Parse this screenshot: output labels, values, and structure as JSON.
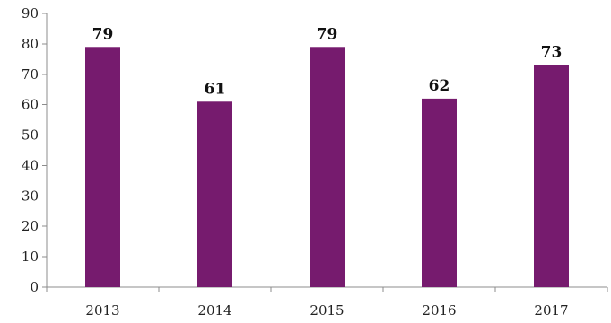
{
  "chart_data": {
    "type": "bar",
    "categories": [
      "2013",
      "2014",
      "2015",
      "2016",
      "2017"
    ],
    "values": [
      79,
      61,
      79,
      62,
      73
    ],
    "data_labels": [
      "79",
      "61",
      "79",
      "62",
      "73"
    ],
    "ylim": [
      0,
      90
    ],
    "y_ticks": [
      0,
      10,
      20,
      30,
      40,
      50,
      60,
      70,
      80,
      90
    ],
    "title": "",
    "xlabel": "",
    "ylabel": "",
    "grid": false,
    "legend": "none",
    "bar_color": "#761b6e",
    "axis_color": "#8c8c8c"
  }
}
